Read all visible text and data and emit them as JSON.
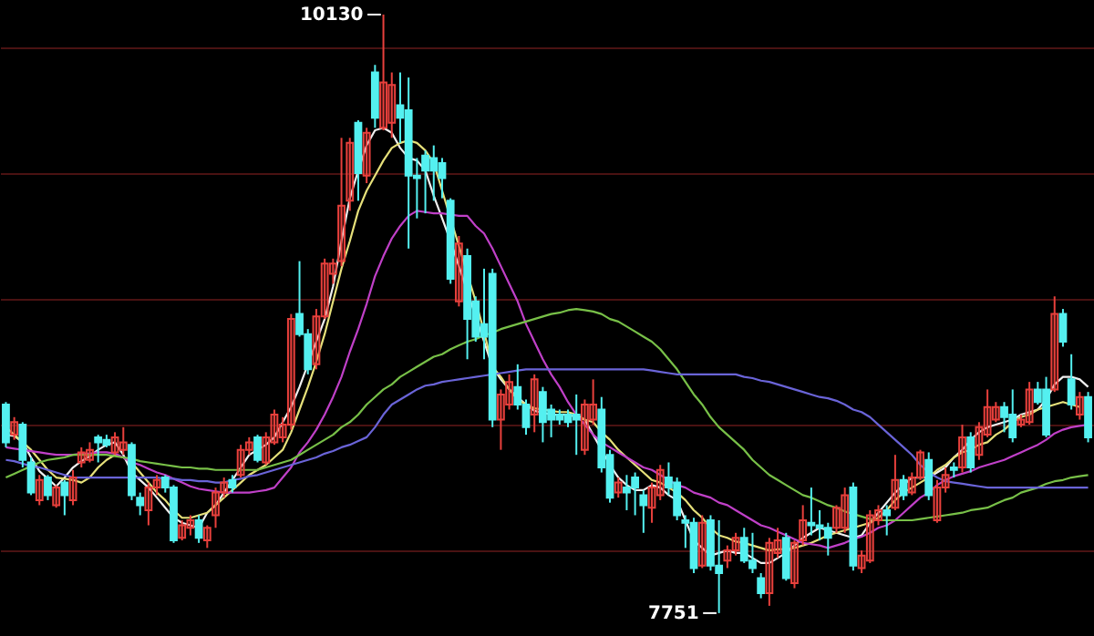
{
  "chart_data": {
    "type": "candlestick",
    "categories": [
      null,
      null,
      null,
      null,
      null,
      null,
      null,
      null,
      null,
      null,
      null,
      null,
      null,
      null,
      null,
      null,
      null,
      null,
      null,
      null,
      null,
      null,
      null,
      null,
      null,
      null,
      null,
      null,
      null,
      null,
      null,
      null,
      null,
      null,
      null,
      null,
      null,
      null,
      null,
      null,
      null,
      null,
      null,
      null,
      null,
      null,
      null,
      null,
      null,
      null,
      null,
      null,
      null,
      null,
      null,
      null,
      null,
      null,
      null,
      null,
      null,
      null,
      null,
      null,
      null,
      null,
      null,
      null,
      null,
      null,
      null,
      null,
      null,
      null,
      null,
      null,
      null,
      null,
      null,
      null,
      null,
      null,
      null,
      null,
      null,
      null,
      null,
      null,
      null,
      null,
      null,
      null,
      null,
      null,
      null,
      null,
      null,
      null,
      null,
      null,
      null,
      null,
      null,
      null,
      null,
      null,
      null,
      null,
      null,
      null,
      null,
      null,
      null,
      null,
      null,
      null,
      null,
      null,
      null,
      null,
      null,
      null,
      null,
      null,
      null,
      null,
      null,
      null,
      null,
      null
    ],
    "ohlc": [
      [
        8580,
        8590,
        8410,
        8430
      ],
      [
        8460,
        8530,
        8440,
        8510
      ],
      [
        8500,
        8510,
        8330,
        8360
      ],
      [
        8350,
        8370,
        8220,
        8230
      ],
      [
        8200,
        8300,
        8180,
        8280
      ],
      [
        8290,
        8300,
        8200,
        8220
      ],
      [
        8180,
        8260,
        8170,
        8250
      ],
      [
        8270,
        8280,
        8140,
        8220
      ],
      [
        8200,
        8320,
        8180,
        8290
      ],
      [
        8350,
        8410,
        8330,
        8390
      ],
      [
        8360,
        8430,
        8350,
        8400
      ],
      [
        8450,
        8460,
        8350,
        8430
      ],
      [
        8440,
        8460,
        8410,
        8420
      ],
      [
        8390,
        8470,
        8380,
        8450
      ],
      [
        8400,
        8490,
        8380,
        8430
      ],
      [
        8420,
        8430,
        8200,
        8220
      ],
      [
        8210,
        8230,
        8140,
        8180
      ],
      [
        8160,
        8270,
        8100,
        8250
      ],
      [
        8250,
        8300,
        8220,
        8280
      ],
      [
        8290,
        8300,
        8230,
        8250
      ],
      [
        8250,
        8260,
        8030,
        8040
      ],
      [
        8050,
        8120,
        8040,
        8100
      ],
      [
        8090,
        8140,
        8060,
        8120
      ],
      [
        8120,
        8140,
        8030,
        8050
      ],
      [
        8040,
        8100,
        8010,
        8090
      ],
      [
        8140,
        8250,
        8090,
        8230
      ],
      [
        8230,
        8290,
        8210,
        8270
      ],
      [
        8280,
        8300,
        8230,
        8250
      ],
      [
        8300,
        8420,
        8290,
        8400
      ],
      [
        8400,
        8450,
        8380,
        8430
      ],
      [
        8450,
        8460,
        8350,
        8360
      ],
      [
        8350,
        8470,
        8340,
        8450
      ],
      [
        8430,
        8560,
        8420,
        8540
      ],
      [
        8450,
        8530,
        8430,
        8500
      ],
      [
        8500,
        8940,
        8480,
        8920
      ],
      [
        8940,
        9150,
        8850,
        8860
      ],
      [
        8860,
        8880,
        8700,
        8720
      ],
      [
        8740,
        8960,
        8720,
        8930
      ],
      [
        8930,
        9160,
        8920,
        9140
      ],
      [
        9100,
        9160,
        9060,
        9140
      ],
      [
        9150,
        9640,
        9130,
        9370
      ],
      [
        9390,
        9640,
        9350,
        9620
      ],
      [
        9700,
        9710,
        9390,
        9500
      ],
      [
        9490,
        9680,
        9460,
        9660
      ],
      [
        9900,
        9930,
        9680,
        9720
      ],
      [
        9680,
        10130,
        9670,
        9860
      ],
      [
        9700,
        9900,
        9640,
        9850
      ],
      [
        9770,
        9900,
        9620,
        9720
      ],
      [
        9750,
        9880,
        9200,
        9490
      ],
      [
        9490,
        9560,
        9320,
        9480
      ],
      [
        9570,
        9590,
        9340,
        9510
      ],
      [
        9560,
        9610,
        9390,
        9510
      ],
      [
        9540,
        9560,
        9400,
        9480
      ],
      [
        9390,
        9400,
        9060,
        9080
      ],
      [
        8990,
        9250,
        8970,
        9220
      ],
      [
        9170,
        9200,
        8760,
        8920
      ],
      [
        8990,
        9010,
        8830,
        8850
      ],
      [
        8900,
        9120,
        8760,
        8850
      ],
      [
        9100,
        9120,
        8490,
        8520
      ],
      [
        8520,
        8640,
        8400,
        8620
      ],
      [
        8580,
        8700,
        8560,
        8670
      ],
      [
        8650,
        8740,
        8560,
        8580
      ],
      [
        8580,
        8600,
        8460,
        8490
      ],
      [
        8540,
        8700,
        8470,
        8680
      ],
      [
        8630,
        8650,
        8430,
        8510
      ],
      [
        8560,
        8580,
        8450,
        8520
      ],
      [
        8540,
        8560,
        8500,
        8520
      ],
      [
        8540,
        8560,
        8490,
        8510
      ],
      [
        8540,
        8620,
        8380,
        8520
      ],
      [
        8400,
        8600,
        8380,
        8580
      ],
      [
        8520,
        8680,
        8500,
        8580
      ],
      [
        8560,
        8610,
        8310,
        8330
      ],
      [
        8380,
        8400,
        8190,
        8210
      ],
      [
        8230,
        8290,
        8210,
        8270
      ],
      [
        8250,
        8300,
        8160,
        8230
      ],
      [
        8290,
        8310,
        8140,
        8250
      ],
      [
        8220,
        8240,
        8070,
        8180
      ],
      [
        8170,
        8270,
        8110,
        8250
      ],
      [
        8220,
        8340,
        8200,
        8320
      ],
      [
        8290,
        8350,
        8220,
        8250
      ],
      [
        8270,
        8290,
        8120,
        8140
      ],
      [
        8120,
        8140,
        8010,
        8110
      ],
      [
        8110,
        8130,
        7910,
        7930
      ],
      [
        7940,
        8140,
        7930,
        8110
      ],
      [
        8120,
        8140,
        7920,
        7940
      ],
      [
        7940,
        8120,
        7751,
        7910
      ],
      [
        7960,
        8020,
        7930,
        8000
      ],
      [
        8000,
        8070,
        7980,
        8050
      ],
      [
        8050,
        8090,
        7950,
        7960
      ],
      [
        7960,
        8070,
        7910,
        7930
      ],
      [
        7890,
        7910,
        7810,
        7830
      ],
      [
        7830,
        8050,
        7780,
        8030
      ],
      [
        7990,
        8090,
        7970,
        8040
      ],
      [
        8050,
        8070,
        7880,
        7890
      ],
      [
        7870,
        8040,
        7850,
        8030
      ],
      [
        8040,
        8180,
        8020,
        8120
      ],
      [
        8110,
        8250,
        8060,
        8100
      ],
      [
        8100,
        8160,
        8040,
        8090
      ],
      [
        8090,
        8110,
        7980,
        8050
      ],
      [
        8090,
        8180,
        8070,
        8170
      ],
      [
        8090,
        8250,
        8070,
        8220
      ],
      [
        8250,
        8270,
        7920,
        7940
      ],
      [
        7930,
        8000,
        7910,
        7980
      ],
      [
        7960,
        8160,
        7950,
        8140
      ],
      [
        8120,
        8180,
        8100,
        8160
      ],
      [
        8160,
        8180,
        8060,
        8140
      ],
      [
        8170,
        8380,
        8160,
        8280
      ],
      [
        8280,
        8300,
        8200,
        8220
      ],
      [
        8230,
        8310,
        8220,
        8290
      ],
      [
        8290,
        8400,
        8280,
        8390
      ],
      [
        8360,
        8390,
        8200,
        8220
      ],
      [
        8120,
        8280,
        8110,
        8250
      ],
      [
        8250,
        8330,
        8230,
        8300
      ],
      [
        8330,
        8350,
        8290,
        8320
      ],
      [
        8330,
        8500,
        8310,
        8450
      ],
      [
        8450,
        8470,
        8310,
        8330
      ],
      [
        8380,
        8510,
        8360,
        8490
      ],
      [
        8460,
        8640,
        8450,
        8570
      ],
      [
        8520,
        8590,
        8510,
        8570
      ],
      [
        8570,
        8590,
        8470,
        8530
      ],
      [
        8540,
        8640,
        8430,
        8450
      ],
      [
        8500,
        8540,
        8490,
        8520
      ],
      [
        8510,
        8670,
        8500,
        8640
      ],
      [
        8640,
        8670,
        8580,
        8590
      ],
      [
        8640,
        8690,
        8450,
        8460
      ],
      [
        8640,
        9010,
        8630,
        8940
      ],
      [
        8940,
        8960,
        8810,
        8830
      ],
      [
        8680,
        8780,
        8560,
        8580
      ],
      [
        8540,
        8630,
        8520,
        8610
      ],
      [
        8610,
        8630,
        8430,
        8450
      ]
    ],
    "colors": [
      "#54f0f0",
      "#e8403c",
      "#54f0f0",
      "#54f0f0",
      "#e8403c",
      "#54f0f0",
      "#e8403c",
      "#54f0f0",
      "#e8403c",
      "#e8403c",
      "#e8403c",
      "#54f0f0",
      "#54f0f0",
      "#e8403c",
      "#e8403c",
      "#54f0f0",
      "#54f0f0",
      "#e8403c",
      "#e8403c",
      "#54f0f0",
      "#54f0f0",
      "#e8403c",
      "#e8403c",
      "#54f0f0",
      "#e8403c",
      "#e8403c",
      "#e8403c",
      "#54f0f0",
      "#e8403c",
      "#e8403c",
      "#54f0f0",
      "#e8403c",
      "#e8403c",
      "#e8403c",
      "#e8403c",
      "#54f0f0",
      "#54f0f0",
      "#e8403c",
      "#e8403c",
      "#e8403c",
      "#e8403c",
      "#e8403c",
      "#54f0f0",
      "#e8403c",
      "#54f0f0",
      "#e8403c",
      "#e8403c",
      "#54f0f0",
      "#54f0f0",
      "#54f0f0",
      "#54f0f0",
      "#54f0f0",
      "#54f0f0",
      "#54f0f0",
      "#e8403c",
      "#54f0f0",
      "#54f0f0",
      "#54f0f0",
      "#54f0f0",
      "#e8403c",
      "#e8403c",
      "#54f0f0",
      "#54f0f0",
      "#e8403c",
      "#54f0f0",
      "#54f0f0",
      "#54f0f0",
      "#54f0f0",
      "#54f0f0",
      "#e8403c",
      "#e8403c",
      "#54f0f0",
      "#54f0f0",
      "#e8403c",
      "#54f0f0",
      "#54f0f0",
      "#54f0f0",
      "#e8403c",
      "#e8403c",
      "#54f0f0",
      "#54f0f0",
      "#54f0f0",
      "#54f0f0",
      "#e8403c",
      "#54f0f0",
      "#54f0f0",
      "#e8403c",
      "#e8403c",
      "#54f0f0",
      "#54f0f0",
      "#54f0f0",
      "#e8403c",
      "#e8403c",
      "#54f0f0",
      "#e8403c",
      "#e8403c",
      "#54f0f0",
      "#54f0f0",
      "#54f0f0",
      "#e8403c",
      "#e8403c",
      "#54f0f0",
      "#e8403c",
      "#e8403c",
      "#e8403c",
      "#54f0f0",
      "#e8403c",
      "#54f0f0",
      "#e8403c",
      "#e8403c",
      "#54f0f0",
      "#e8403c",
      "#e8403c",
      "#54f0f0",
      "#e8403c",
      "#54f0f0",
      "#e8403c",
      "#e8403c",
      "#e8403c",
      "#54f0f0",
      "#54f0f0",
      "#e8403c",
      "#e8403c",
      "#54f0f0",
      "#54f0f0",
      "#e8403c",
      "#54f0f0",
      "#54f0f0",
      "#e8403c",
      "#54f0f0"
    ],
    "series": [
      {
        "type": "line",
        "color": "#f0f0f0",
        "values": [
          8460,
          8455,
          8430,
          8370,
          8315,
          8285,
          8255,
          8290,
          8330,
          8355,
          8375,
          8400,
          8420,
          8430,
          8380,
          8310,
          8280,
          8250,
          8210,
          8170,
          8130,
          8110,
          8100,
          8090,
          8150,
          8180,
          8230,
          8280,
          8330,
          8380,
          8400,
          8420,
          8450,
          8510,
          8570,
          8650,
          8740,
          8830,
          8920,
          9050,
          9230,
          9400,
          9510,
          9610,
          9670,
          9680,
          9660,
          9600,
          9560,
          9550,
          9510,
          9410,
          9320,
          9230,
          9130,
          9030,
          8930,
          8830,
          8730,
          8680,
          8640,
          8610,
          8580,
          8555,
          null,
          8540,
          8540,
          8540,
          8530,
          8520,
          8460,
          null,
          8340,
          8290,
          8260,
          8240,
          8240,
          8260,
          8250,
          8220,
          8200,
          8120,
          8040,
          8010,
          7980,
          7990,
          8000,
          7990,
          7990,
          7970,
          7950,
          7950,
          7970,
          7990,
          8020,
          8050,
          8070,
          8090,
          8080,
          8070,
          8060,
          8050,
          8060,
          8110,
          8150,
          8190,
          8230,
          8260,
          8290,
          8290,
          8290,
          8310,
          8330,
          8370,
          8400,
          8440,
          8470,
          8490,
          8500,
          8510,
          8520,
          8540,
          8550,
          8560,
          8600,
          8660,
          8690,
          8690,
          8680,
          8650
        ]
      },
      {
        "type": "line",
        "color": "#e6e07a",
        "values": [
          8490,
          8460,
          8430,
          8400,
          8360,
          8320,
          8290,
          8285,
          8280,
          8270,
          8290,
          8330,
          8360,
          8380,
          8370,
          8350,
          8310,
          8270,
          8230,
          8200,
          8160,
          8130,
          8130,
          8140,
          8150,
          8180,
          8210,
          8240,
          8270,
          8300,
          8320,
          8340,
          8370,
          8400,
          8470,
          8560,
          8650,
          8750,
          8860,
          8990,
          9120,
          9230,
          9350,
          9430,
          9490,
          9550,
          9600,
          9620,
          9630,
          9620,
          9590,
          9540,
          9430,
          null,
          9210,
          null,
          8990,
          8870,
          8730,
          8690,
          8640,
          8600,
          8580,
          8565,
          null,
          8555,
          8550,
          8550,
          8540,
          8520,
          8510,
          8470,
          8440,
          8400,
          8370,
          8340,
          8310,
          8280,
          8270,
          8250,
          8230,
          8200,
          8160,
          8130,
          8090,
          8060,
          8050,
          8035,
          8030,
          8020,
          8010,
          8000,
          8005,
          8005,
          8010,
          8020,
          8030,
          8045,
          8060,
          8070,
          8080,
          8090,
          8100,
          8110,
          8130,
          8160,
          8200,
          8230,
          8250,
          8270,
          8290,
          8320,
          8340,
          8370,
          8390,
          8400,
          8420,
          8430,
          8460,
          8480,
          8510,
          8530,
          8540,
          8560,
          8570,
          8580,
          8590,
          8580,
          8570,
          null
        ]
      },
      {
        "type": "line",
        "color": "#c040c8",
        "values": [
          8410,
          8405,
          8400,
          8395,
          8390,
          8385,
          8380,
          8380,
          8380,
          8385,
          8385,
          8390,
          8390,
          8385,
          8370,
          8350,
          8340,
          8325,
          8310,
          8300,
          8285,
          8270,
          8255,
          8245,
          8240,
          8235,
          8230,
          8230,
          8230,
          8230,
          8235,
          8240,
          8250,
          8290,
          8330,
          8390,
          8430,
          8480,
          8540,
          8610,
          8690,
          8790,
          8880,
          8980,
          9090,
          9170,
          9240,
          9290,
          9330,
          9350,
          9345,
          9340,
          9340,
          9335,
          9330,
          9330,
          9290,
          9260,
          9200,
          9130,
          9060,
          8990,
          8900,
          8830,
          8760,
          8700,
          8650,
          8590,
          8540,
          8500,
          8460,
          8430,
          8410,
          8390,
          8370,
          8350,
          8330,
          8320,
          8300,
          8280,
          8260,
          8250,
          8230,
          8220,
          8210,
          8190,
          8180,
          8160,
          8140,
          8120,
          8100,
          8090,
          8075,
          8060,
          8045,
          8030,
          8025,
          8020,
          8010,
          8020,
          8030,
          8045,
          8055,
          8070,
          8090,
          8100,
          8120,
          8150,
          8180,
          8210,
          8230,
          8260,
          8280,
          8295,
          8305,
          8315,
          8330,
          8340,
          8350,
          8360,
          8375,
          8390,
          8405,
          8420,
          8440,
          8465,
          8480,
          8490,
          8495,
          8500
        ]
      },
      {
        "type": "line",
        "color": "#78c048",
        "values": [
          8290,
          8305,
          8320,
          8335,
          8350,
          8360,
          8365,
          8370,
          8380,
          8380,
          8380,
          8380,
          8380,
          8375,
          8370,
          8365,
          8355,
          8350,
          8345,
          8340,
          8335,
          8330,
          8330,
          8325,
          8325,
          8320,
          8320,
          8320,
          8320,
          8320,
          8320,
          8330,
          8340,
          8350,
          8360,
          8380,
          8400,
          8420,
          8440,
          8460,
          8490,
          8510,
          8540,
          8580,
          8610,
          8640,
          8660,
          8690,
          8710,
          8730,
          8750,
          8770,
          8780,
          8800,
          8815,
          8830,
          8840,
          8855,
          8865,
          8880,
          8890,
          8900,
          8910,
          8920,
          8930,
          8940,
          8945,
          8955,
          8960,
          8955,
          8950,
          8940,
          8920,
          8910,
          8890,
          8870,
          8850,
          8830,
          8800,
          8760,
          8720,
          8670,
          8620,
          8580,
          8530,
          8490,
          8460,
          8430,
          8400,
          8360,
          8330,
          8300,
          8280,
          8260,
          8240,
          8220,
          8210,
          8195,
          8180,
          8170,
          8155,
          8145,
          8135,
          8125,
          8120,
          8120,
          8120,
          8120,
          8120,
          8125,
          8130,
          8135,
          8140,
          8145,
          8150,
          8160,
          8165,
          8170,
          8185,
          8200,
          8210,
          8230,
          8240,
          8250,
          8265,
          8275,
          8280,
          8290,
          8295,
          8300
        ]
      },
      {
        "type": "line",
        "color": "#6a64d8",
        "values": [
          8360,
          8355,
          8345,
          8335,
          8330,
          8320,
          8310,
          8300,
          8290,
          8290,
          8290,
          8290,
          8290,
          8290,
          8290,
          8290,
          8290,
          8290,
          8290,
          8285,
          8285,
          8280,
          8280,
          8275,
          8275,
          8270,
          8270,
          8280,
          8285,
          8295,
          8300,
          8310,
          8320,
          8330,
          8340,
          8350,
          8360,
          8370,
          8385,
          8395,
          8410,
          8420,
          8435,
          8450,
          8490,
          8540,
          8580,
          8600,
          8620,
          8640,
          8655,
          8660,
          8670,
          8675,
          8680,
          8685,
          8690,
          8695,
          8700,
          8705,
          8710,
          8715,
          8720,
          8720,
          8720,
          8720,
          8720,
          8720,
          8720,
          8720,
          8720,
          8720,
          8720,
          8720,
          8720,
          8720,
          8720,
          8715,
          8710,
          8705,
          8700,
          8700,
          8700,
          8700,
          8700,
          8700,
          8700,
          8700,
          8690,
          8685,
          8675,
          8670,
          8660,
          8650,
          8640,
          8630,
          8620,
          8610,
          8605,
          8595,
          8580,
          8560,
          8550,
          8530,
          8500,
          8470,
          8440,
          8410,
          8380,
          8340,
          8310,
          8290,
          8275,
          8270,
          8265,
          8260,
          8255,
          8250,
          8250,
          8250,
          8250,
          8250,
          8250,
          8250,
          8250,
          8250,
          8250,
          8250,
          8250,
          8250
        ]
      }
    ],
    "annotations": [
      "10130",
      "7751"
    ],
    "ylim": [
      7660,
      10188
    ],
    "yticks": [
      8000,
      8500,
      9000,
      9500,
      10000
    ],
    "grid": "y",
    "tick_labels": false
  }
}
